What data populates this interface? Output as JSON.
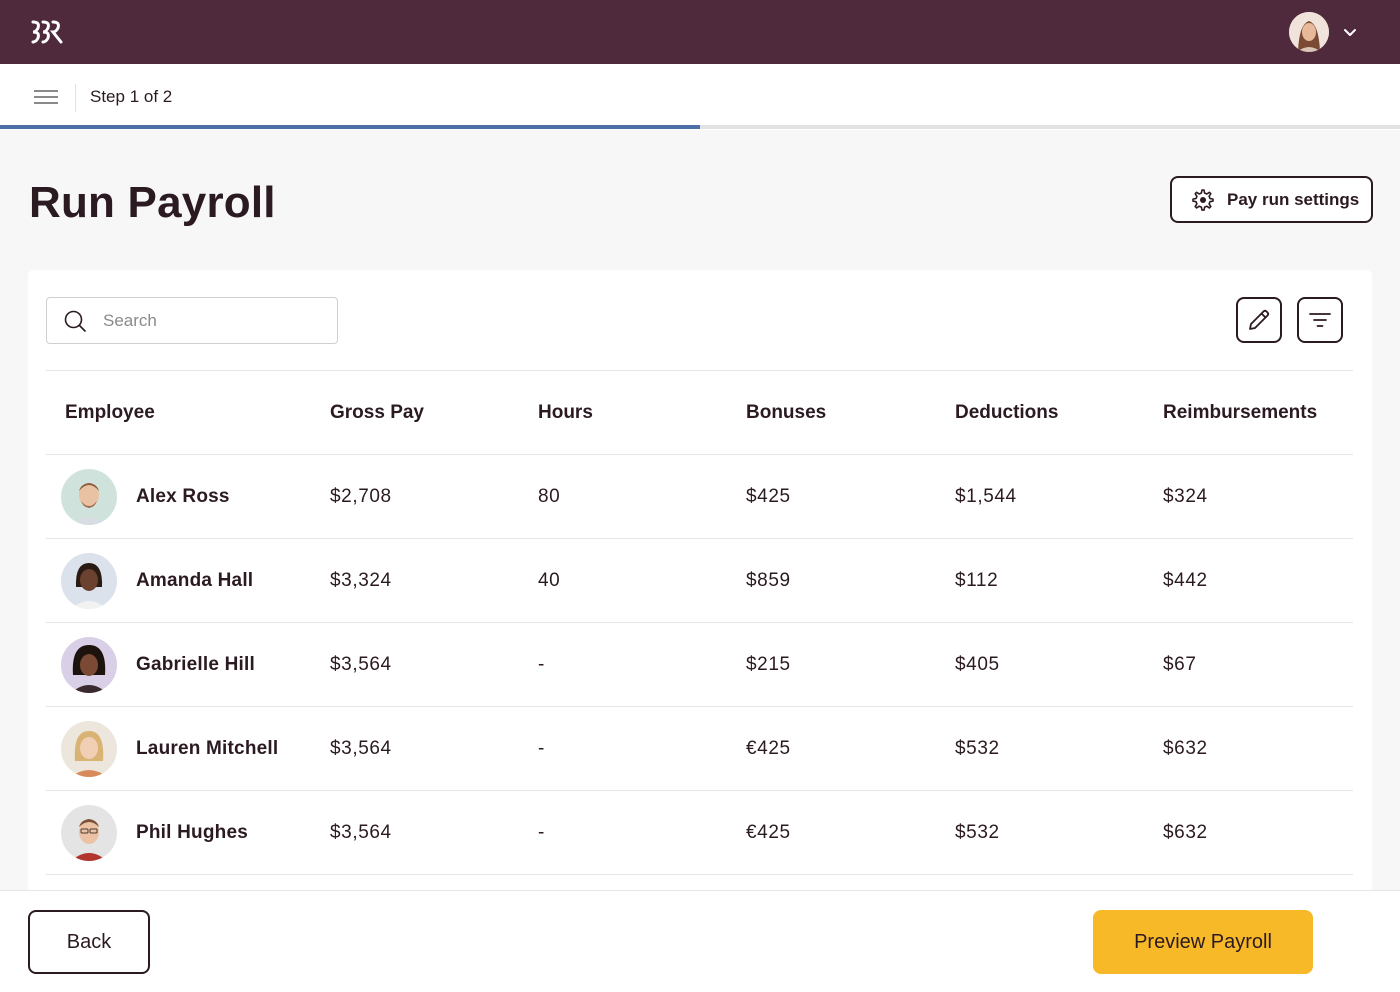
{
  "header": {
    "logo_icon": "company-logo",
    "profile_icon": "user-avatar",
    "menu_icon": "chevron-down-icon",
    "bg_color": "#4f2a3c"
  },
  "stepper": {
    "menu_icon": "hamburger-icon",
    "label": "Step 1 of 2",
    "progress": 0.5,
    "progress_color": "#4d6fa8"
  },
  "page": {
    "title": "Run Payroll",
    "settings_label": "Pay run settings",
    "settings_icon": "gear-icon"
  },
  "toolbar": {
    "search_placeholder": "Search",
    "search_value": "",
    "edit_icon": "pencil-icon",
    "filter_icon": "filter-icon"
  },
  "table": {
    "columns": [
      "Employee",
      "Gross Pay",
      "Hours",
      "Bonuses",
      "Deductions",
      "Reimbursements"
    ],
    "rows": [
      {
        "name": "Alex Ross",
        "gross": "$2,708",
        "hours": "80",
        "bonus": "$425",
        "deductions": "$1,544",
        "reimb": "$324"
      },
      {
        "name": "Amanda Hall",
        "gross": "$3,324",
        "hours": "40",
        "bonus": "$859",
        "deductions": "$112",
        "reimb": "$442"
      },
      {
        "name": "Gabrielle Hill",
        "gross": "$3,564",
        "hours": "-",
        "bonus": "$215",
        "deductions": "$405",
        "reimb": "$67"
      },
      {
        "name": "Lauren Mitchell",
        "gross": "$3,564",
        "hours": "-",
        "bonus": "€425",
        "deductions": "$532",
        "reimb": "$632"
      },
      {
        "name": "Phil Hughes",
        "gross": "$3,564",
        "hours": "-",
        "bonus": "€425",
        "deductions": "$532",
        "reimb": "$632"
      }
    ]
  },
  "footer": {
    "back_label": "Back",
    "preview_label": "Preview Payroll",
    "preview_color": "#f7b928"
  }
}
